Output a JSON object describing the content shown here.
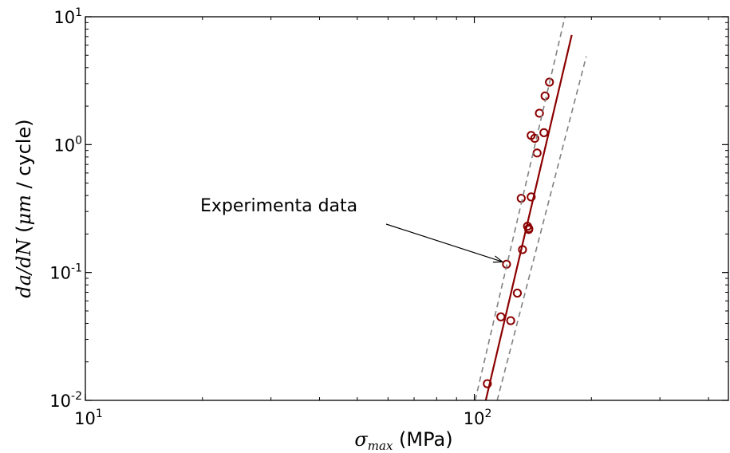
{
  "chart_data": {
    "type": "scatter",
    "xscale": "log",
    "yscale": "log",
    "xlim": [
      10,
      450
    ],
    "ylim": [
      0.01,
      10
    ],
    "xlabel": {
      "math": "σ",
      "sub": "max",
      "text": " (MPa)"
    },
    "ylabel": {
      "math": "da/dN",
      "text_a": " (",
      "math2": "μm",
      "text_b": " / cycle)"
    },
    "x_ticks": [
      {
        "value": 10,
        "base": "10",
        "exp": "1"
      },
      {
        "value": 100,
        "base": "10",
        "exp": "2"
      }
    ],
    "y_ticks": [
      {
        "value": 0.01,
        "base": "10",
        "exp": "-2"
      },
      {
        "value": 0.1,
        "base": "10",
        "exp": "-1"
      },
      {
        "value": 1,
        "base": "10",
        "exp": "0"
      },
      {
        "value": 10,
        "base": "10",
        "exp": "1"
      }
    ],
    "x_minor_ticks": [
      20,
      30,
      40,
      50,
      60,
      70,
      80,
      90,
      200,
      300,
      400
    ],
    "y_minor_ticks": [
      0.02,
      0.03,
      0.04,
      0.05,
      0.06,
      0.07,
      0.08,
      0.09,
      0.2,
      0.3,
      0.4,
      0.5,
      0.6,
      0.7,
      0.8,
      0.9,
      2,
      3,
      4,
      5,
      6,
      7,
      8,
      9
    ],
    "series": [
      {
        "kind": "scatter",
        "color": "#8b0000",
        "points": [
          [
            108,
            0.0135
          ],
          [
            117,
            0.045
          ],
          [
            121,
            0.116
          ],
          [
            124,
            0.042
          ],
          [
            129,
            0.069
          ],
          [
            132,
            0.38
          ],
          [
            133,
            0.151
          ],
          [
            137,
            0.23
          ],
          [
            138,
            0.221
          ],
          [
            138,
            0.217
          ],
          [
            140,
            0.39
          ],
          [
            140,
            1.18
          ],
          [
            143,
            1.12
          ],
          [
            145,
            0.86
          ],
          [
            147,
            1.76
          ],
          [
            151,
            1.24
          ],
          [
            152,
            2.4
          ],
          [
            156,
            3.08
          ]
        ]
      },
      {
        "kind": "fit-line",
        "color": "#8b0000",
        "points": [
          [
            107,
            0.01
          ],
          [
            178,
            7.2
          ]
        ]
      },
      {
        "kind": "band-upper",
        "color": "#808080",
        "dashed": true,
        "points": [
          [
            100.5,
            0.01
          ],
          [
            171,
            10
          ]
        ]
      },
      {
        "kind": "band-lower",
        "color": "#808080",
        "dashed": true,
        "points": [
          [
            114.5,
            0.01
          ],
          [
            194,
            4.9
          ]
        ]
      }
    ],
    "annotation": {
      "text": "Experimenta data",
      "target": [
        121,
        0.116
      ]
    }
  }
}
